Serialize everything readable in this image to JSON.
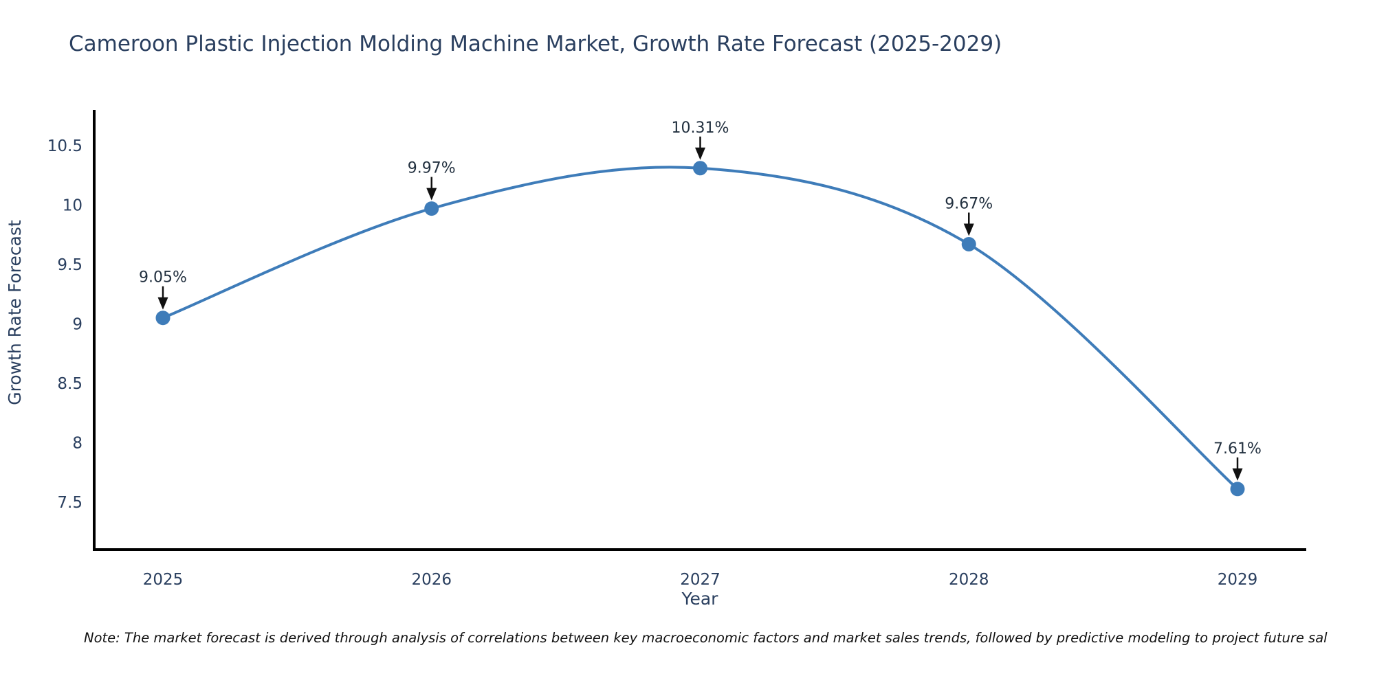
{
  "title": "Cameroon Plastic Injection Molding Machine Market, Growth Rate Forecast (2025-2029)",
  "note": "Note: The market forecast is derived through analysis of correlations between key macroeconomic factors and market sales trends, followed by predictive modeling to project future sal",
  "chart_data": {
    "type": "line",
    "title": "Cameroon Plastic Injection Molding Machine Market, Growth Rate Forecast (2025-2029)",
    "categories": [
      "2025",
      "2026",
      "2027",
      "2028",
      "2029"
    ],
    "series": [
      {
        "name": "Growth Rate Forecast",
        "values": [
          9.05,
          9.97,
          10.31,
          9.67,
          7.61
        ]
      }
    ],
    "point_labels": [
      "9.05%",
      "9.97%",
      "10.31%",
      "9.67%",
      "7.61%"
    ],
    "xlabel": "Year",
    "ylabel": "Growth Rate Forecast",
    "yticks": [
      7.5,
      8,
      8.5,
      9,
      9.5,
      10,
      10.5
    ],
    "ylim": [
      7.1,
      10.8
    ],
    "grid": false,
    "legend": "none",
    "line_shape": "spline",
    "colors": {
      "line": "#3E7CB9",
      "marker": "#3E7CB9",
      "axis": "#000000",
      "text": "#2a3f5f",
      "annotation_text": "#22303f",
      "arrow": "#111111",
      "note_text": "#111111"
    }
  }
}
